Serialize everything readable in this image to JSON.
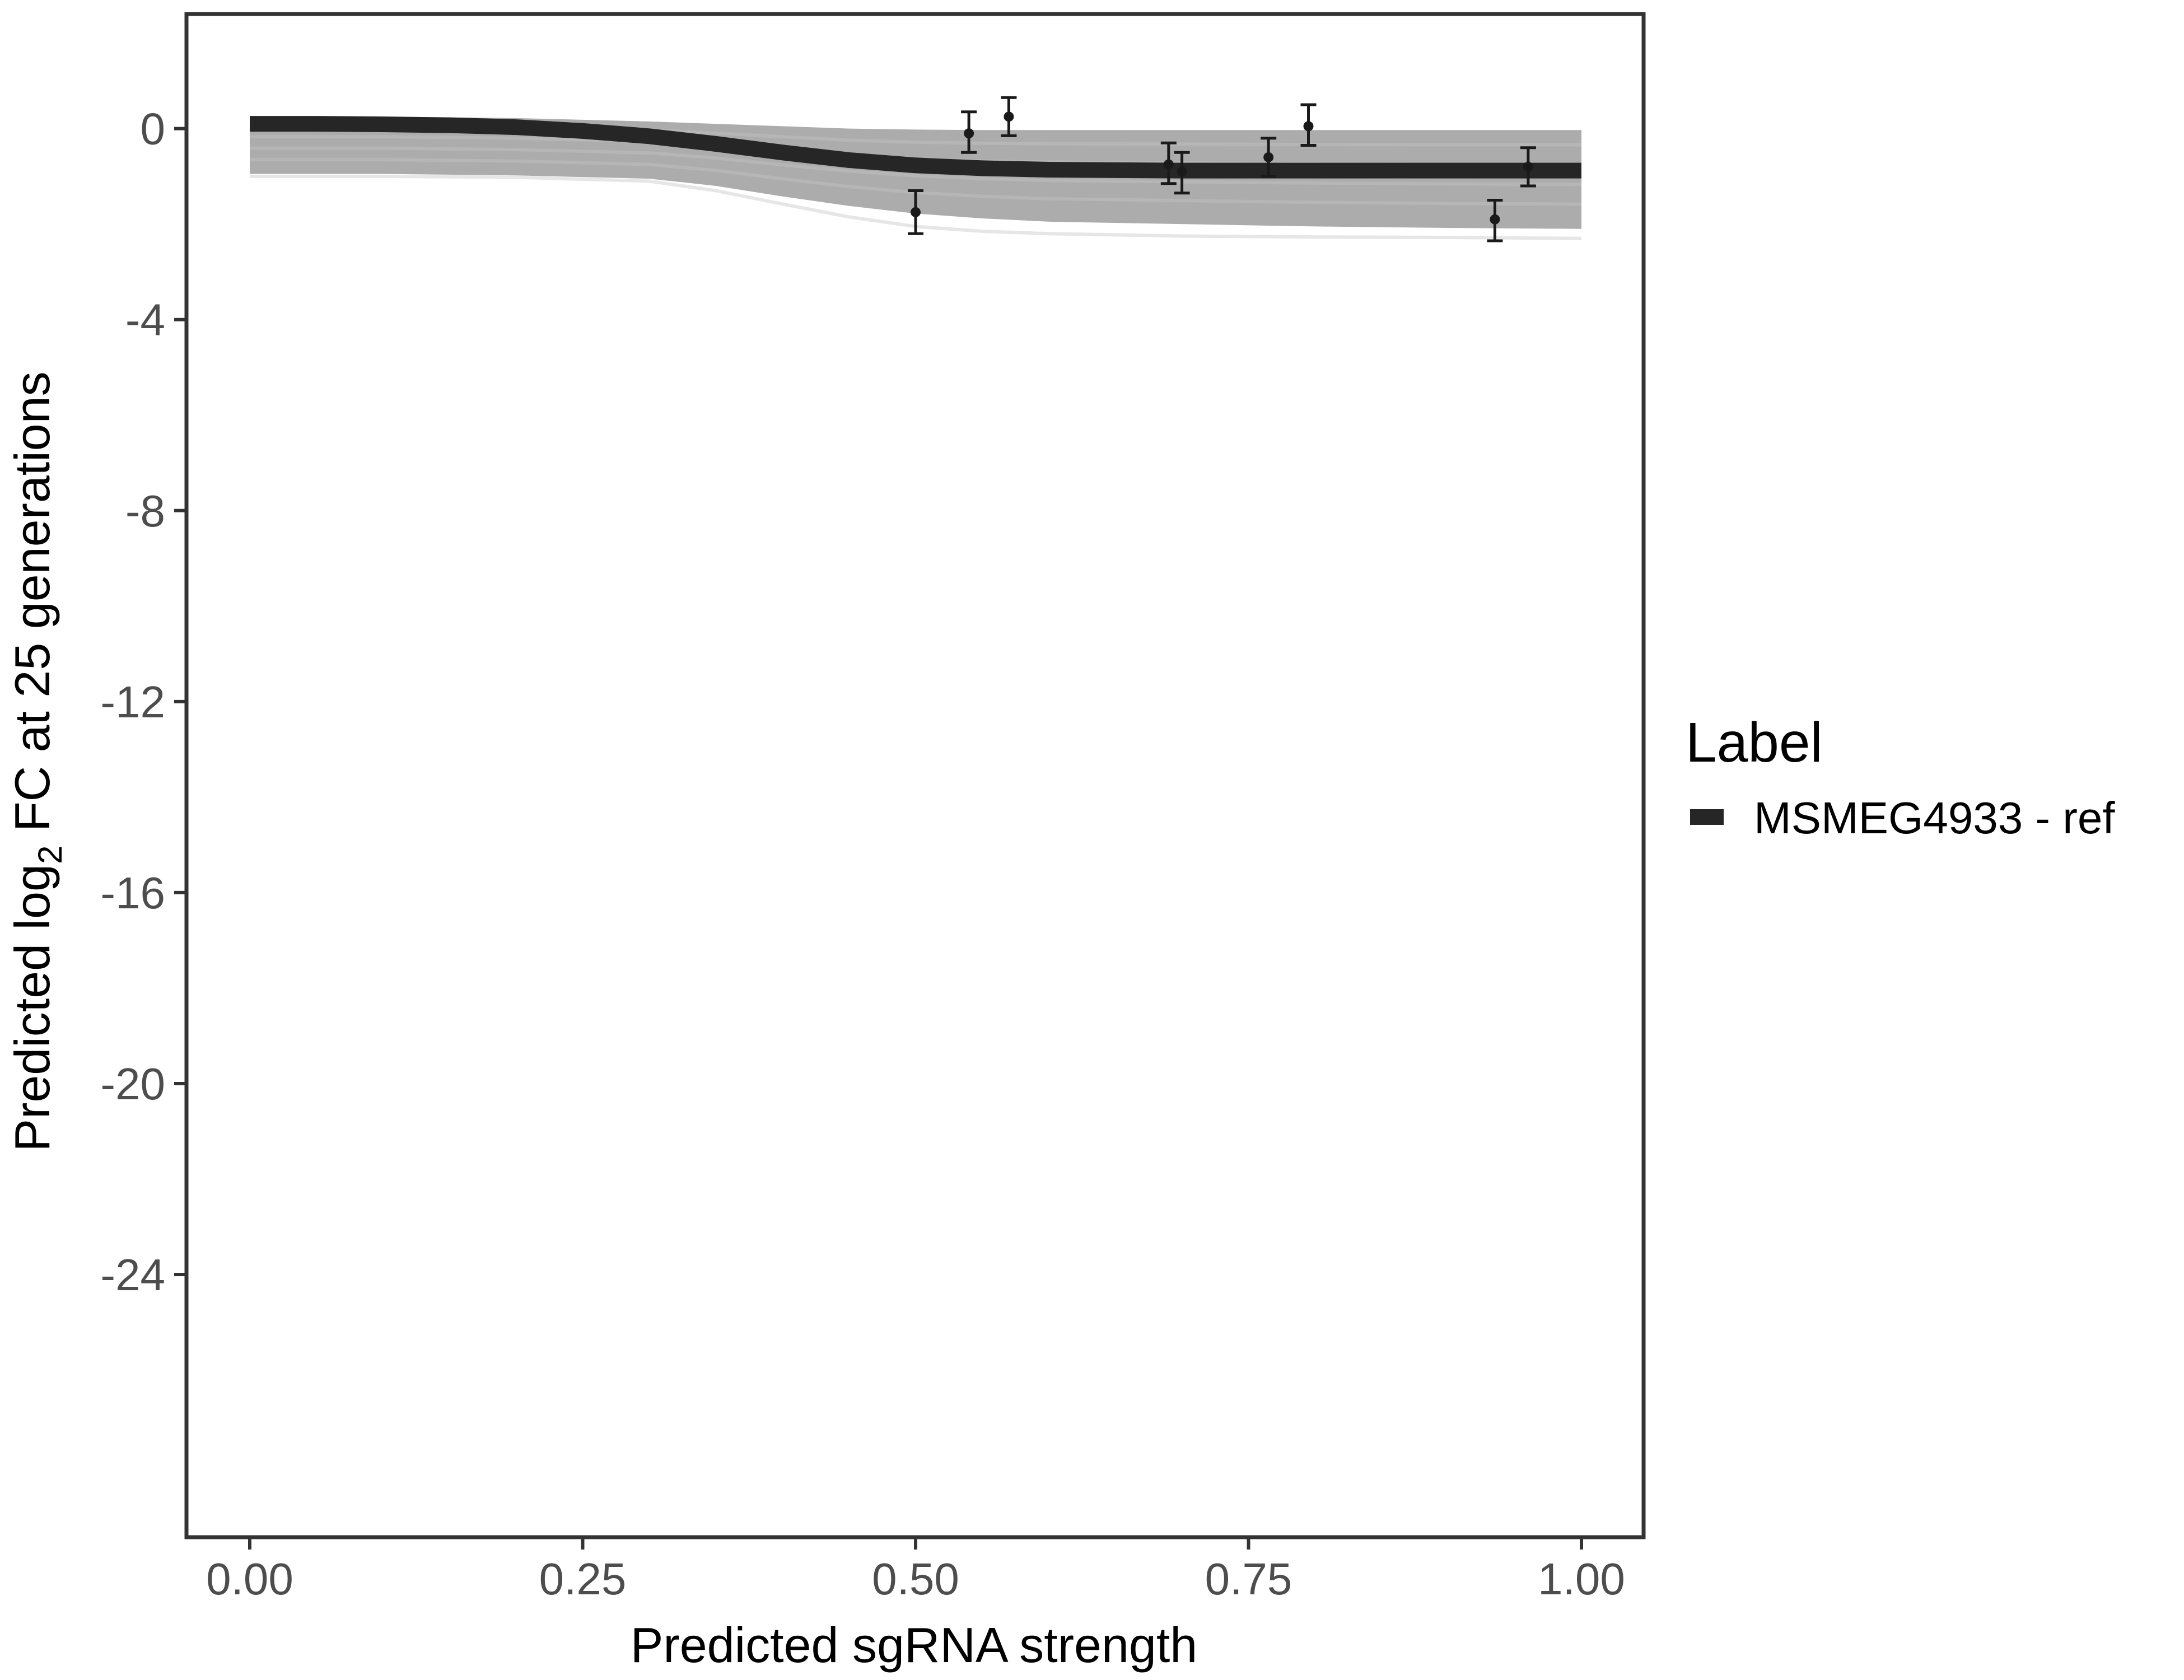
{
  "chart_data": {
    "type": "line",
    "xlabel": "Predicted sgRNA strength",
    "ylabel": {
      "prefix": "Predicted  log",
      "subscript": "2",
      "suffix": " FC at 25 generations"
    },
    "xlim": [
      -0.1,
      2.09
    ],
    "ylim": [
      -29.5,
      2.4
    ],
    "x_ticks": [
      0.0,
      0.25,
      0.5,
      0.75,
      1.0
    ],
    "x_tick_labels": [
      "0.00",
      "0.25",
      "0.50",
      "0.75",
      "1.00"
    ],
    "y_ticks": [
      0,
      -4,
      -8,
      -12,
      -16,
      -20,
      -24
    ],
    "y_tick_labels": [
      "0",
      "-4",
      "-8",
      "-12",
      "-16",
      "-20",
      "-24"
    ],
    "grid": false,
    "legend": {
      "title": "Label",
      "placement": "right",
      "entries": [
        {
          "name": "MSMEG4933 - ref",
          "color": "#262626"
        }
      ]
    },
    "series": [
      {
        "name": "MSMEG4933 - ref",
        "kind": "fit",
        "color": "#262626",
        "x": [
          0.0,
          0.05,
          0.1,
          0.15,
          0.2,
          0.25,
          0.3,
          0.35,
          0.4,
          0.45,
          0.5,
          0.55,
          0.6,
          0.65,
          0.7,
          0.75,
          0.8,
          0.85,
          0.9,
          0.95,
          1.0
        ],
        "y": [
          0.1,
          0.1,
          0.09,
          0.07,
          0.03,
          -0.05,
          -0.16,
          -0.32,
          -0.5,
          -0.66,
          -0.77,
          -0.83,
          -0.86,
          -0.87,
          -0.88,
          -0.88,
          -0.88,
          -0.88,
          -0.88,
          -0.88,
          -0.88
        ]
      }
    ],
    "posterior_band": {
      "color": "#9e9e9e",
      "x": [
        0.0,
        0.1,
        0.2,
        0.3,
        0.35,
        0.4,
        0.45,
        0.5,
        0.55,
        0.6,
        0.7,
        0.8,
        0.9,
        1.0
      ],
      "upper": [
        0.25,
        0.25,
        0.22,
        0.15,
        0.1,
        0.05,
        0.0,
        -0.02,
        -0.03,
        -0.03,
        -0.03,
        -0.03,
        -0.03,
        -0.03
      ],
      "lower": [
        -0.95,
        -0.95,
        -0.98,
        -1.05,
        -1.2,
        -1.42,
        -1.62,
        -1.78,
        -1.88,
        -1.95,
        -2.0,
        -2.05,
        -2.08,
        -2.1
      ]
    },
    "outlier_draw": {
      "color": "#e6e6e6",
      "x": [
        0.0,
        0.1,
        0.2,
        0.3,
        0.35,
        0.4,
        0.45,
        0.5,
        0.55,
        0.6,
        0.7,
        0.8,
        0.9,
        1.0
      ],
      "y": [
        -1.0,
        -1.0,
        -1.02,
        -1.1,
        -1.3,
        -1.58,
        -1.85,
        -2.05,
        -2.15,
        -2.2,
        -2.25,
        -2.27,
        -2.28,
        -2.3
      ]
    },
    "points": [
      {
        "x": 0.5,
        "y": -1.75,
        "ymin": -2.2,
        "ymax": -1.3
      },
      {
        "x": 0.54,
        "y": -0.1,
        "ymin": -0.5,
        "ymax": 0.35
      },
      {
        "x": 0.57,
        "y": 0.25,
        "ymin": -0.15,
        "ymax": 0.65
      },
      {
        "x": 0.69,
        "y": -0.75,
        "ymin": -1.15,
        "ymax": -0.3
      },
      {
        "x": 0.7,
        "y": -0.9,
        "ymin": -1.35,
        "ymax": -0.5
      },
      {
        "x": 0.765,
        "y": -0.6,
        "ymin": -1.0,
        "ymax": -0.2
      },
      {
        "x": 0.795,
        "y": 0.05,
        "ymin": -0.35,
        "ymax": 0.5
      },
      {
        "x": 0.935,
        "y": -1.9,
        "ymin": -2.35,
        "ymax": -1.5
      },
      {
        "x": 0.96,
        "y": -0.8,
        "ymin": -1.2,
        "ymax": -0.4
      }
    ]
  }
}
